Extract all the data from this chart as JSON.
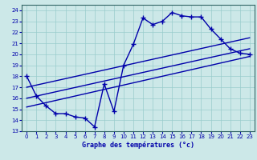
{
  "title": "Graphe des températures (°c)",
  "bg_color": "#cce8e8",
  "line_color": "#0000aa",
  "xlim": [
    -0.5,
    23.5
  ],
  "ylim": [
    13,
    24.5
  ],
  "xticks": [
    0,
    1,
    2,
    3,
    4,
    5,
    6,
    7,
    8,
    9,
    10,
    11,
    12,
    13,
    14,
    15,
    16,
    17,
    18,
    19,
    20,
    21,
    22,
    23
  ],
  "yticks": [
    13,
    14,
    15,
    16,
    17,
    18,
    19,
    20,
    21,
    22,
    23,
    24
  ],
  "curve1_x": [
    0,
    1,
    2,
    3,
    4,
    5,
    6,
    7,
    8,
    9,
    10,
    11,
    12,
    13,
    14,
    15,
    16,
    17,
    18,
    19,
    20,
    21,
    22,
    23
  ],
  "curve1_y": [
    18,
    16.2,
    15.3,
    14.6,
    14.6,
    14.3,
    14.2,
    13.4,
    17.3,
    14.8,
    19.0,
    20.9,
    23.3,
    22.7,
    23.0,
    23.8,
    23.5,
    23.4,
    23.4,
    22.3,
    21.4,
    20.5,
    20.1,
    20.0
  ],
  "line2_x": [
    0,
    23
  ],
  "line2_y": [
    17.0,
    21.5
  ],
  "line3_x": [
    0,
    23
  ],
  "line3_y": [
    16.0,
    20.5
  ],
  "line4_x": [
    0,
    23
  ],
  "line4_y": [
    15.2,
    19.8
  ]
}
